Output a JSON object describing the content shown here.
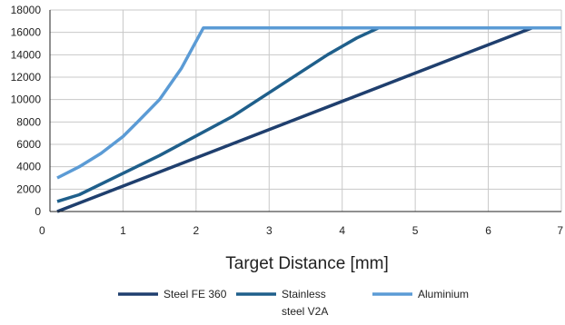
{
  "chart_data": {
    "type": "line",
    "title": "",
    "xlabel": "Target Distance  [mm]",
    "ylabel": "",
    "xlim": [
      0,
      7
    ],
    "ylim": [
      0,
      18000
    ],
    "xticks": [
      "0",
      "1",
      "2",
      "3",
      "4",
      "5",
      "6",
      "7"
    ],
    "yticks": [
      "0",
      "2000",
      "4000",
      "6000",
      "8000",
      "10000",
      "12000",
      "14000",
      "16000",
      "18000"
    ],
    "grid": true,
    "legend_position": "bottom",
    "series": [
      {
        "name": "Steel FE 360",
        "legend_lines": [
          "Steel FE 360"
        ],
        "color": "#1f3f6e",
        "points": [
          [
            0.1,
            0
          ],
          [
            6.6,
            16400
          ],
          [
            7.0,
            16400
          ]
        ]
      },
      {
        "name": "Stainless steel V2A",
        "legend_lines": [
          "Stainless",
          "steel V2A"
        ],
        "color": "#1f5f8b",
        "points": [
          [
            0.1,
            900
          ],
          [
            0.4,
            1500
          ],
          [
            1.5,
            5000
          ],
          [
            2.5,
            8500
          ],
          [
            3.8,
            14000
          ],
          [
            4.2,
            15500
          ],
          [
            4.5,
            16400
          ],
          [
            7.0,
            16400
          ]
        ]
      },
      {
        "name": "Aluminium",
        "legend_lines": [
          "Aluminium"
        ],
        "color": "#5b9bd5",
        "points": [
          [
            0.1,
            3000
          ],
          [
            0.4,
            4000
          ],
          [
            0.7,
            5200
          ],
          [
            1.0,
            6700
          ],
          [
            1.2,
            8000
          ],
          [
            1.5,
            10000
          ],
          [
            1.8,
            12800
          ],
          [
            2.1,
            16400
          ],
          [
            7.0,
            16400
          ]
        ]
      }
    ]
  }
}
